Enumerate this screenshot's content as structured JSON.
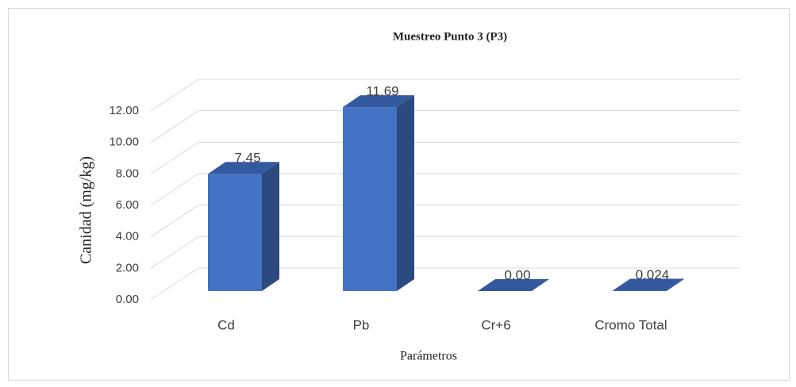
{
  "chart_data": {
    "type": "bar3d",
    "title": "Muestreo Punto 3 (P3)",
    "x_label": "Parámetros",
    "y_label": "Canidad (mg/kg)",
    "categories": [
      "Cd",
      "Pb",
      "Cr+6",
      "Cromo Total"
    ],
    "values": [
      7.45,
      11.69,
      0.0,
      0.024
    ],
    "value_labels": [
      "7.45",
      "11.69",
      "0.00",
      "0.024"
    ],
    "color": "#4472c4",
    "ylim": [
      0,
      12
    ],
    "yticks": [
      {
        "value": 0,
        "label": "0.00"
      },
      {
        "value": 2,
        "label": "2.00"
      },
      {
        "value": 4,
        "label": "4.00"
      },
      {
        "value": 6,
        "label": "6.00"
      },
      {
        "value": 8,
        "label": "8.00"
      },
      {
        "value": 10,
        "label": "10.00"
      },
      {
        "value": 12,
        "label": "12.00"
      }
    ],
    "grid": true
  }
}
